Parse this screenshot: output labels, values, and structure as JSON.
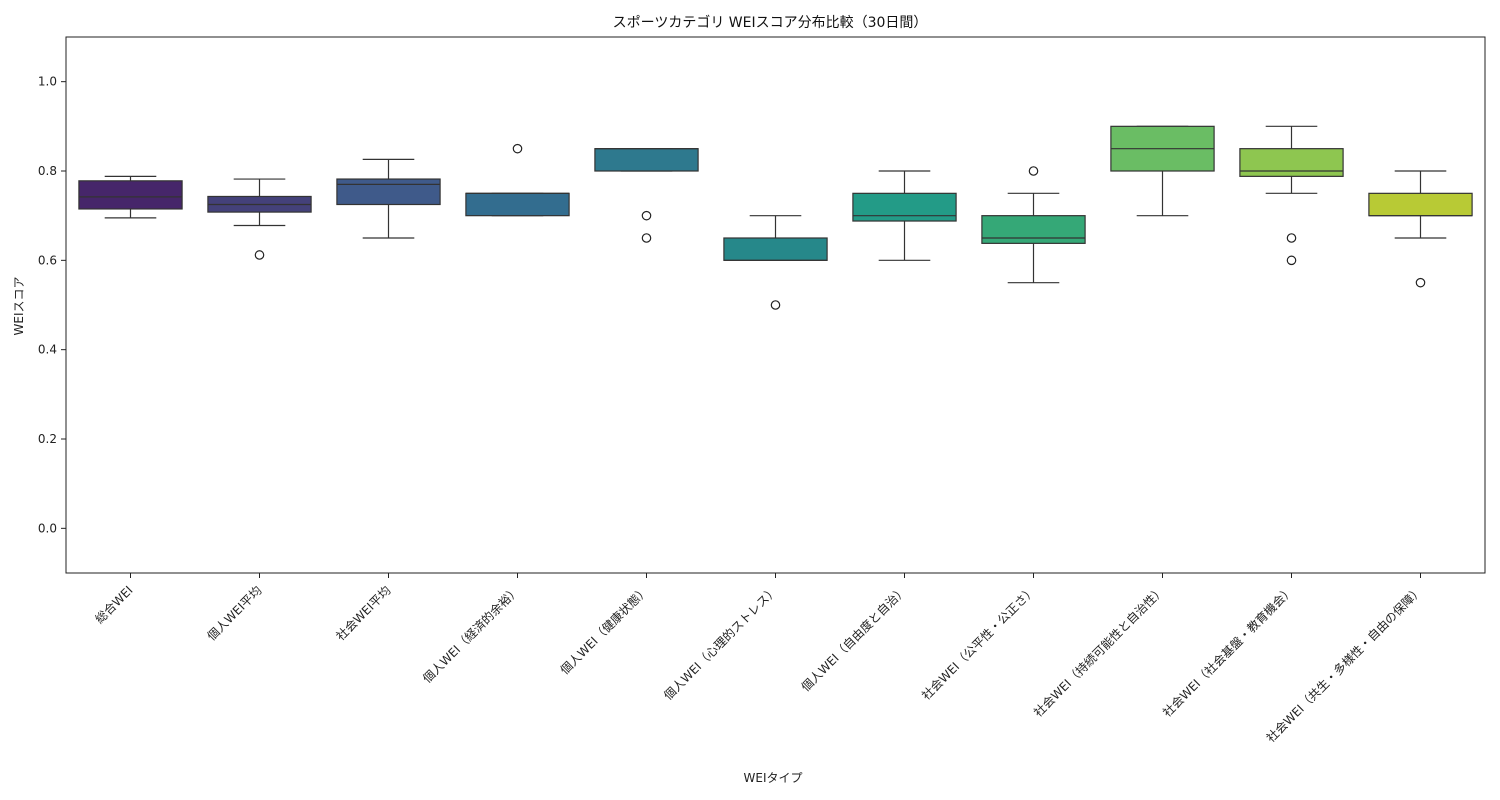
{
  "chart_data": {
    "type": "box",
    "title": "スポーツカテゴリ WEIスコア分布比較（30日間）",
    "xlabel": "WEIタイプ",
    "ylabel": "WEIスコア",
    "ylim": [
      -0.1,
      1.1
    ],
    "yticks": [
      "0.0",
      "0.2",
      "0.4",
      "0.6",
      "0.8",
      "1.0"
    ],
    "grid": false,
    "legend": "none",
    "categories": [
      "総合WEI",
      "個人WEI平均",
      "社会WEI平均",
      "個人WEI（経済的余裕）",
      "個人WEI（健康状態）",
      "個人WEI（心理的ストレス）",
      "個人WEI（自由度と自治）",
      "社会WEI（公平性・公正さ）",
      "社会WEI（持続可能性と自治性）",
      "社会WEI（社会基盤・教育機会）",
      "社会WEI（共生・多様性・自由の保障）"
    ],
    "boxes": [
      {
        "whisker_low": 0.695,
        "q1": 0.715,
        "median": 0.742,
        "q3": 0.778,
        "whisker_high": 0.788,
        "outliers": [],
        "color": "#46266a"
      },
      {
        "whisker_low": 0.678,
        "q1": 0.708,
        "median": 0.725,
        "q3": 0.743,
        "whisker_high": 0.782,
        "outliers": [
          0.612
        ],
        "color": "#44417a"
      },
      {
        "whisker_low": 0.65,
        "q1": 0.725,
        "median": 0.77,
        "q3": 0.782,
        "whisker_high": 0.826,
        "outliers": [],
        "color": "#3f5a8a"
      },
      {
        "whisker_low": 0.7,
        "q1": 0.7,
        "median": 0.75,
        "q3": 0.75,
        "whisker_high": 0.75,
        "outliers": [
          0.85
        ],
        "color": "#336d8f"
      },
      {
        "whisker_low": 0.8,
        "q1": 0.8,
        "median": 0.85,
        "q3": 0.85,
        "whisker_high": 0.85,
        "outliers": [
          0.7,
          0.65
        ],
        "color": "#2e798e"
      },
      {
        "whisker_low": 0.6,
        "q1": 0.6,
        "median": 0.6,
        "q3": 0.65,
        "whisker_high": 0.7,
        "outliers": [
          0.5
        ],
        "color": "#26888a"
      },
      {
        "whisker_low": 0.6,
        "q1": 0.688,
        "median": 0.7,
        "q3": 0.75,
        "whisker_high": 0.8,
        "outliers": [],
        "color": "#239b87"
      },
      {
        "whisker_low": 0.55,
        "q1": 0.638,
        "median": 0.65,
        "q3": 0.7,
        "whisker_high": 0.75,
        "outliers": [
          0.8
        ],
        "color": "#35a877"
      },
      {
        "whisker_low": 0.7,
        "q1": 0.8,
        "median": 0.85,
        "q3": 0.9,
        "whisker_high": 0.9,
        "outliers": [],
        "color": "#6abd64"
      },
      {
        "whisker_low": 0.75,
        "q1": 0.788,
        "median": 0.8,
        "q3": 0.85,
        "whisker_high": 0.9,
        "outliers": [
          0.65,
          0.6
        ],
        "color": "#8ec650"
      },
      {
        "whisker_low": 0.65,
        "q1": 0.7,
        "median": 0.7,
        "q3": 0.75,
        "whisker_high": 0.8,
        "outliers": [
          0.55
        ],
        "color": "#b8ca35"
      }
    ]
  }
}
